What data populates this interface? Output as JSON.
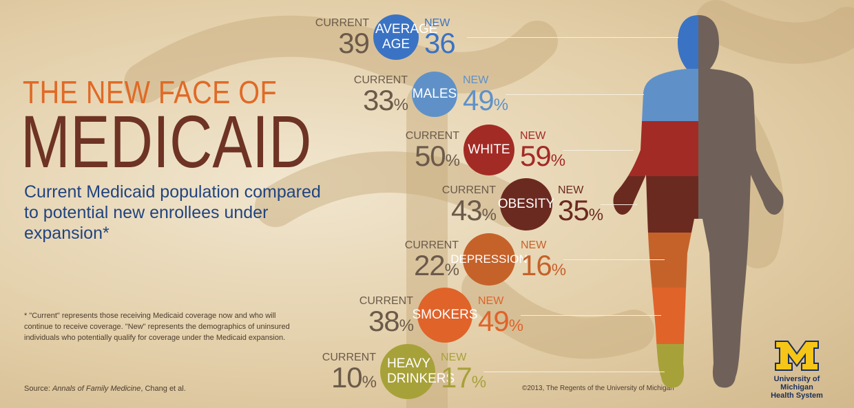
{
  "title_line1": "THE NEW FACE OF",
  "title_line2": "MEDICAID",
  "subtitle": "Current Medicaid population compared to potential new enrollees under expansion*",
  "footnote": "* \"Current\" represents those receiving Medicaid coverage now and who will continue to receive coverage. \"New\" represents the demographics of uninsured individuals who potentially qualify for coverage under the Medicaid expansion.",
  "source_prefix": "Source: ",
  "source_journal": "Annals of Family Medicine",
  "source_suffix": ", Chang et al.",
  "copyright": "©2013, The Regents of the University of Michigan",
  "logo": {
    "letter": "M",
    "line1": "University of Michigan",
    "line2": "Health System"
  },
  "labels": {
    "current": "CURRENT",
    "new": "NEW"
  },
  "chart_data": {
    "type": "table",
    "columns": [
      "CURRENT",
      "NEW"
    ],
    "rows": [
      {
        "category": "AVERAGE AGE",
        "current": 39,
        "new": 36,
        "unit": "",
        "color": "#3b73c4"
      },
      {
        "category": "MALES",
        "current": 33,
        "new": 49,
        "unit": "%",
        "color": "#5f91c8"
      },
      {
        "category": "WHITE",
        "current": 50,
        "new": 59,
        "unit": "%",
        "color": "#a32b25"
      },
      {
        "category": "OBESITY",
        "current": 43,
        "new": 35,
        "unit": "%",
        "color": "#6b2a20"
      },
      {
        "category": "DEPRESSION",
        "current": 22,
        "new": 16,
        "unit": "%",
        "color": "#c5622a"
      },
      {
        "category": "SMOKERS",
        "current": 38,
        "new": 49,
        "unit": "%",
        "color": "#e0632a"
      },
      {
        "category": "HEAVY DRINKERS",
        "current": 10,
        "new": 17,
        "unit": "%",
        "color": "#a7a13a"
      }
    ]
  },
  "colors": {
    "brown_half": "#6f6159",
    "maize": "#f5c518",
    "navy": "#1b2f5c"
  }
}
